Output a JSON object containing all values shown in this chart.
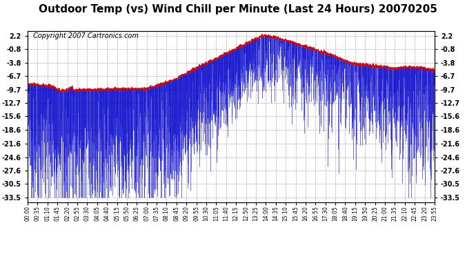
{
  "title": "Outdoor Temp (vs) Wind Chill per Minute (Last 24 Hours) 20070205",
  "copyright": "Copyright 2007 Cartronics.com",
  "yticks": [
    2.2,
    -0.8,
    -3.8,
    -6.7,
    -9.7,
    -12.7,
    -15.6,
    -18.6,
    -21.6,
    -24.6,
    -27.6,
    -30.5,
    -33.5
  ],
  "background_color": "#ffffff",
  "plot_bg_color": "#ffffff",
  "grid_color": "#aaaaaa",
  "title_fontsize": 11,
  "copyright_fontsize": 7,
  "xtick_labels": [
    "00:00",
    "00:35",
    "01:10",
    "01:45",
    "02:20",
    "02:55",
    "03:30",
    "04:05",
    "04:40",
    "05:15",
    "05:50",
    "06:25",
    "07:00",
    "07:35",
    "08:10",
    "08:45",
    "09:20",
    "09:55",
    "10:30",
    "11:05",
    "11:40",
    "12:15",
    "12:50",
    "13:25",
    "14:00",
    "14:35",
    "15:10",
    "15:45",
    "16:20",
    "16:55",
    "17:30",
    "18:05",
    "18:40",
    "19:15",
    "19:50",
    "20:25",
    "21:00",
    "21:35",
    "22:10",
    "22:45",
    "23:20",
    "23:55"
  ],
  "red_line_color": "#dd0000",
  "blue_bar_color": "#0000cc",
  "n_minutes": 1440,
  "red_seed": 10,
  "blue_seed": 42
}
